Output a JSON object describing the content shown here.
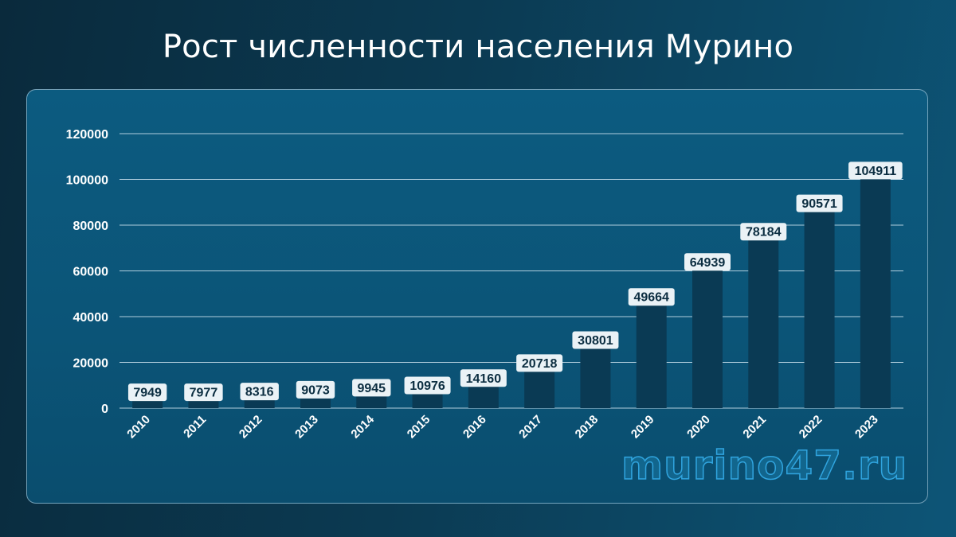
{
  "title": "Рост численности населения Мурино",
  "watermark": "murino47.ru",
  "colors": {
    "bar": "#0a3a54",
    "grid": "#cfe3ee",
    "label_bg": "#eaf2f6",
    "label_text": "#0b2d40",
    "axis_text": "#ffffff"
  },
  "chart_data": {
    "type": "bar",
    "title": "Рост численности населения Мурино",
    "categories": [
      "2010",
      "2011",
      "2012",
      "2013",
      "2014",
      "2015",
      "2016",
      "2017",
      "2018",
      "2019",
      "2020",
      "2021",
      "2022",
      "2023"
    ],
    "values": [
      7949,
      7977,
      8316,
      9073,
      9945,
      10976,
      14160,
      20718,
      30801,
      49664,
      64939,
      78184,
      90571,
      104911
    ],
    "ylim": [
      0,
      120000
    ],
    "yticks": [
      "0",
      "20000",
      "40000",
      "60000",
      "80000",
      "100000",
      "120000"
    ],
    "grid": true,
    "legend": "none",
    "data_labels": true
  }
}
